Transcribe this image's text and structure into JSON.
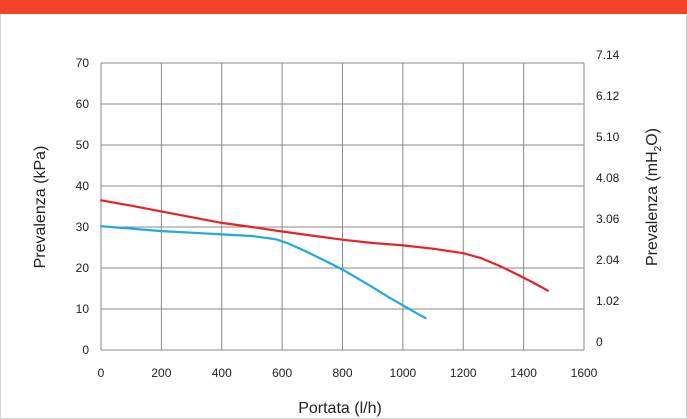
{
  "colors": {
    "accent_bar": "#f0432a"
  },
  "chart_data": {
    "type": "line",
    "xlabel": "Portata (l/h)",
    "ylabel": "Prevalenza (kPa)",
    "y2label_parts": [
      "Prevalenza (mH",
      "2",
      "O)"
    ],
    "xlim": [
      0,
      1600
    ],
    "ylim": [
      0,
      70
    ],
    "y2lim": [
      0,
      7.14
    ],
    "x_ticks": [
      "0",
      "200",
      "400",
      "600",
      "800",
      "1000",
      "1200",
      "1400",
      "1600"
    ],
    "y_ticks": [
      "0",
      "10",
      "20",
      "30",
      "40",
      "50",
      "60",
      "70"
    ],
    "y2_ticks": [
      "0",
      "1.02",
      "2.04",
      "3.06",
      "4.08",
      "5.10",
      "6.12",
      "7.14"
    ],
    "grid": true,
    "series": [
      {
        "color": "#e4232b",
        "points": [
          [
            0,
            36.5
          ],
          [
            100,
            35.2
          ],
          [
            200,
            33.8
          ],
          [
            300,
            32.4
          ],
          [
            400,
            31.0
          ],
          [
            500,
            30.0
          ],
          [
            600,
            28.9
          ],
          [
            700,
            27.9
          ],
          [
            800,
            26.9
          ],
          [
            900,
            26.1
          ],
          [
            1000,
            25.5
          ],
          [
            1100,
            24.7
          ],
          [
            1200,
            23.6
          ],
          [
            1260,
            22.4
          ],
          [
            1320,
            20.5
          ],
          [
            1380,
            18.4
          ],
          [
            1430,
            16.5
          ],
          [
            1480,
            14.5
          ]
        ]
      },
      {
        "color": "#1fa9df",
        "points": [
          [
            0,
            30.2
          ],
          [
            100,
            29.6
          ],
          [
            200,
            29.0
          ],
          [
            300,
            28.6
          ],
          [
            400,
            28.2
          ],
          [
            500,
            27.8
          ],
          [
            580,
            27.0
          ],
          [
            620,
            26.0
          ],
          [
            680,
            24.0
          ],
          [
            750,
            21.5
          ],
          [
            800,
            19.6
          ],
          [
            850,
            17.5
          ],
          [
            900,
            15.3
          ],
          [
            950,
            13.0
          ],
          [
            1000,
            10.9
          ],
          [
            1040,
            9.2
          ],
          [
            1075,
            7.8
          ]
        ]
      }
    ]
  }
}
